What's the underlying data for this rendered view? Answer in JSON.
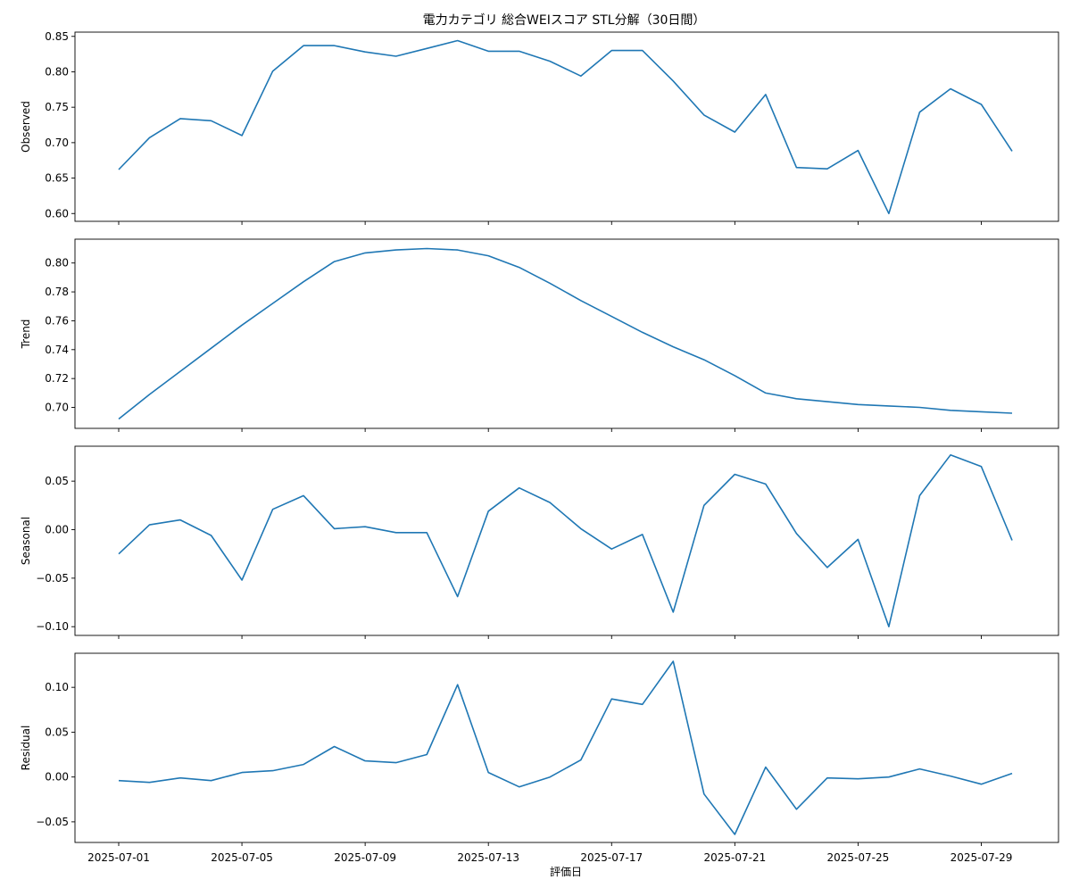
{
  "chart_data": {
    "type": "line",
    "title": "電力カテゴリ 総合WEIスコア STL分解（30日間）",
    "xlabel": "評価日",
    "x_tick_labels": [
      "2025-07-01",
      "2025-07-05",
      "2025-07-09",
      "2025-07-13",
      "2025-07-17",
      "2025-07-21",
      "2025-07-25",
      "2025-07-29"
    ],
    "x_tick_day_index": [
      0,
      4,
      8,
      12,
      16,
      20,
      24,
      28
    ],
    "x": [
      "2025-07-01",
      "2025-07-02",
      "2025-07-03",
      "2025-07-04",
      "2025-07-05",
      "2025-07-06",
      "2025-07-07",
      "2025-07-08",
      "2025-07-09",
      "2025-07-10",
      "2025-07-11",
      "2025-07-12",
      "2025-07-13",
      "2025-07-14",
      "2025-07-15",
      "2025-07-16",
      "2025-07-17",
      "2025-07-18",
      "2025-07-19",
      "2025-07-20",
      "2025-07-21",
      "2025-07-22",
      "2025-07-23",
      "2025-07-24",
      "2025-07-25",
      "2025-07-26",
      "2025-07-27",
      "2025-07-28",
      "2025-07-29",
      "2025-07-30"
    ],
    "line_color": "#1f77b4",
    "grid": false,
    "panels": [
      {
        "ylabel": "Observed",
        "ylim": [
          0.589,
          0.856
        ],
        "yticks": [
          0.6,
          0.65,
          0.7,
          0.75,
          0.8,
          0.85
        ],
        "ytick_labels": [
          "0.60",
          "0.65",
          "0.70",
          "0.75",
          "0.80",
          "0.85"
        ],
        "values": [
          0.662,
          0.707,
          0.734,
          0.731,
          0.71,
          0.801,
          0.837,
          0.837,
          0.828,
          0.822,
          0.833,
          0.844,
          0.829,
          0.829,
          0.815,
          0.794,
          0.83,
          0.83,
          0.787,
          0.739,
          0.715,
          0.768,
          0.665,
          0.663,
          0.689,
          0.6,
          0.743,
          0.776,
          0.754,
          0.688
        ]
      },
      {
        "ylabel": "Trend",
        "ylim": [
          0.6855,
          0.8165
        ],
        "yticks": [
          0.7,
          0.72,
          0.74,
          0.76,
          0.78,
          0.8
        ],
        "ytick_labels": [
          "0.70",
          "0.72",
          "0.74",
          "0.76",
          "0.78",
          "0.80"
        ],
        "values": [
          0.692,
          0.709,
          0.725,
          0.741,
          0.757,
          0.772,
          0.787,
          0.801,
          0.807,
          0.809,
          0.81,
          0.809,
          0.805,
          0.797,
          0.786,
          0.774,
          0.763,
          0.752,
          0.742,
          0.733,
          0.722,
          0.71,
          0.706,
          0.704,
          0.702,
          0.701,
          0.7,
          0.698,
          0.697,
          0.696
        ]
      },
      {
        "ylabel": "Seasonal",
        "ylim": [
          -0.109,
          0.086
        ],
        "yticks": [
          -0.1,
          -0.05,
          0.0,
          0.05
        ],
        "ytick_labels": [
          "−0.10",
          "−0.05",
          "0.00",
          "0.05"
        ],
        "values": [
          -0.025,
          0.005,
          0.01,
          -0.006,
          -0.052,
          0.021,
          0.035,
          0.001,
          0.003,
          -0.003,
          -0.003,
          -0.069,
          0.019,
          0.043,
          0.028,
          0.001,
          -0.02,
          -0.005,
          -0.085,
          0.025,
          0.057,
          0.047,
          -0.004,
          -0.039,
          -0.01,
          -0.1,
          0.035,
          0.077,
          0.065,
          -0.011
        ]
      },
      {
        "ylabel": "Residual",
        "ylim": [
          -0.073,
          0.138
        ],
        "yticks": [
          -0.05,
          0.0,
          0.05,
          0.1
        ],
        "ytick_labels": [
          "−0.05",
          "0.00",
          "0.05",
          "0.10"
        ],
        "values": [
          -0.004,
          -0.006,
          -0.001,
          -0.004,
          0.005,
          0.007,
          0.014,
          0.034,
          0.018,
          0.016,
          0.025,
          0.103,
          0.005,
          -0.011,
          0.0,
          0.019,
          0.087,
          0.081,
          0.129,
          -0.019,
          -0.064,
          0.011,
          -0.036,
          -0.001,
          -0.002,
          0.0,
          0.009,
          0.001,
          -0.008,
          0.004
        ]
      }
    ]
  }
}
